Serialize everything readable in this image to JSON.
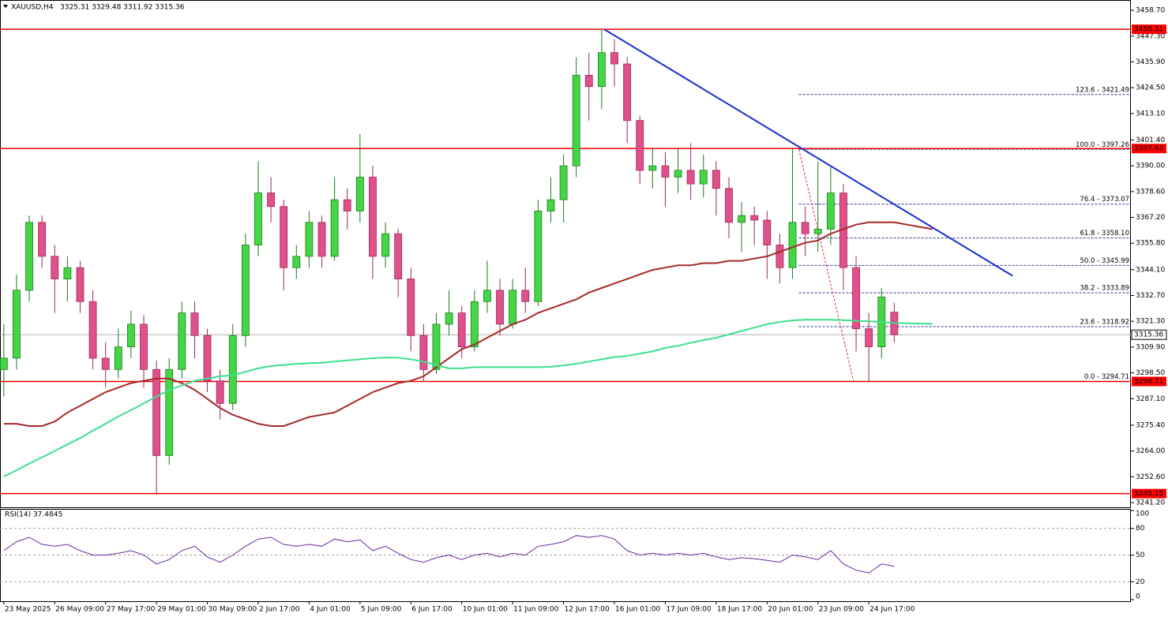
{
  "chart_data": {
    "type": "candlestick",
    "title": "XAUUSD,H4",
    "subtitle": "3325.31 3329.48 3311.92 3315.36",
    "xlim": [
      -0.3,
      88.6
    ],
    "xticks": [
      {
        "value": 0,
        "label": "23 May 2025"
      },
      {
        "value": 4,
        "label": "26 May 09:00"
      },
      {
        "value": 8,
        "label": "27 May 17:00"
      },
      {
        "value": 12,
        "label": "29 May 01:00"
      },
      {
        "value": 16,
        "label": "30 May 09:00"
      },
      {
        "value": 20,
        "label": "2 Jun 17:00"
      },
      {
        "value": 24,
        "label": "4 Jun 01:00"
      },
      {
        "value": 28,
        "label": "5 Jun 09:00"
      },
      {
        "value": 32,
        "label": "6 Jun 17:00"
      },
      {
        "value": 36,
        "label": "10 Jun 01:00"
      },
      {
        "value": 40,
        "label": "11 Jun 09:00"
      },
      {
        "value": 44,
        "label": "12 Jun 17:00"
      },
      {
        "value": 48,
        "label": "16 Jun 01:00"
      },
      {
        "value": 52,
        "label": "17 Jun 09:00"
      },
      {
        "value": 56,
        "label": "18 Jun 17:00"
      },
      {
        "value": 60,
        "label": "20 Jun 01:00"
      },
      {
        "value": 64,
        "label": "23 Jun 09:00"
      },
      {
        "value": 68,
        "label": "24 Jun 17:00"
      }
    ],
    "ylim": [
      3239.1,
      3462.9
    ],
    "yticks": [
      {
        "value": 3458.7,
        "label": "3458.70"
      },
      {
        "value": 3447.3,
        "label": "3447.30"
      },
      {
        "value": 3435.9,
        "label": "3435.90"
      },
      {
        "value": 3424.5,
        "label": "3424.50"
      },
      {
        "value": 3413.1,
        "label": "3413.10"
      },
      {
        "value": 3401.4,
        "label": "3401.40"
      },
      {
        "value": 3390,
        "label": "3390.00"
      },
      {
        "value": 3378.6,
        "label": "3378.60"
      },
      {
        "value": 3367.2,
        "label": "3367.20"
      },
      {
        "value": 3355.8,
        "label": "3355.80"
      },
      {
        "value": 3344.1,
        "label": "3344.10"
      },
      {
        "value": 3332.7,
        "label": "3332.70"
      },
      {
        "value": 3321.3,
        "label": "3321.30"
      },
      {
        "value": 3309.9,
        "label": "3309.90"
      },
      {
        "value": 3298.5,
        "label": "3298.50"
      },
      {
        "value": 3287.1,
        "label": "3287.10"
      },
      {
        "value": 3275.4,
        "label": "3275.40"
      },
      {
        "value": 3264,
        "label": "3264.00"
      },
      {
        "value": 3252.6,
        "label": "3252.60"
      },
      {
        "value": 3241.2,
        "label": "3241.20"
      }
    ],
    "up_color": "#44d644",
    "down_color": "#e0508a",
    "ohlc": {
      "open": [
        3300,
        3305,
        3335,
        3365,
        3350,
        3340,
        3345,
        3330,
        3305,
        3300,
        3310,
        3320,
        3300,
        3262,
        3300,
        3325,
        3315,
        3295,
        3285,
        3315,
        3355,
        3378,
        3372,
        3345,
        3350,
        3365,
        3350,
        3375,
        3370,
        3385,
        3350,
        3360,
        3340,
        3315,
        3300,
        3320,
        3325,
        3310,
        3330,
        3335,
        3320,
        3335,
        3330,
        3370,
        3375,
        3390,
        3430,
        3425,
        3440,
        3435,
        3410,
        3388,
        3390,
        3385,
        3388,
        3382,
        3388,
        3380,
        3365,
        3368,
        3366,
        3355,
        3345,
        3365,
        3360,
        3362,
        3378,
        3345,
        3318,
        3310,
        3325.31,
        null,
        null,
        null
      ],
      "high": [
        3320,
        3342,
        3368,
        3368,
        3355,
        3350,
        3348,
        3335,
        3312,
        3318,
        3326,
        3324,
        3304,
        3305,
        3330,
        3330,
        3318,
        3300,
        3320,
        3360,
        3392,
        3385,
        3375,
        3355,
        3370,
        3368,
        3385,
        3380,
        3404,
        3390,
        3365,
        3362,
        3345,
        3320,
        3325,
        3335,
        3328,
        3335,
        3348,
        3340,
        3340,
        3345,
        3375,
        3385,
        3395,
        3438,
        3440,
        3450.31,
        3446,
        3438,
        3412,
        3398,
        3396,
        3398,
        3400,
        3395,
        3392,
        3385,
        3374,
        3372,
        3370,
        3360,
        3398,
        3372,
        3392,
        3390,
        3382,
        3350,
        3325,
        3336,
        3329.48,
        null,
        null,
        null
      ],
      "low": [
        3288,
        3300,
        3330,
        3345,
        3325,
        3330,
        3325,
        3300,
        3292,
        3296,
        3305,
        3292,
        3245.15,
        3258,
        3296,
        3305,
        3290,
        3278,
        3282,
        3310,
        3350,
        3365,
        3335,
        3340,
        3345,
        3345,
        3348,
        3362,
        3365,
        3340,
        3345,
        3332,
        3308,
        3295,
        3298,
        3315,
        3305,
        3308,
        3325,
        3315,
        3318,
        3325,
        3328,
        3365,
        3365,
        3385,
        3410,
        3415,
        3425,
        3400,
        3382,
        3380,
        3372,
        3378,
        3375,
        3376,
        3368,
        3358,
        3352,
        3355,
        3340,
        3338,
        3340,
        3350,
        3352,
        3355,
        3335,
        3308,
        3294.71,
        3305,
        3311.92,
        null,
        null,
        null
      ],
      "close": [
        3305,
        3335,
        3365,
        3350,
        3340,
        3345,
        3330,
        3305,
        3300,
        3310,
        3320,
        3300,
        3262,
        3300,
        3325,
        3315,
        3295,
        3285,
        3315,
        3355,
        3378,
        3372,
        3345,
        3350,
        3365,
        3350,
        3375,
        3370,
        3385,
        3350,
        3360,
        3340,
        3315,
        3300,
        3320,
        3325,
        3310,
        3330,
        3335,
        3320,
        3335,
        3330,
        3370,
        3375,
        3390,
        3430,
        3425,
        3440,
        3435,
        3410,
        3388,
        3390,
        3385,
        3388,
        3382,
        3388,
        3380,
        3365,
        3368,
        3366,
        3355,
        3345,
        3365,
        3360,
        3362,
        3378,
        3345,
        3318,
        3310,
        3332,
        3315.36,
        null,
        null,
        null
      ]
    },
    "series": [
      {
        "color": "#a52a2a",
        "values": [
          3276,
          3276,
          3275,
          3275,
          3277,
          3281,
          3284,
          3287,
          3290,
          3292,
          3294,
          3295,
          3296,
          3296,
          3294,
          3291,
          3287,
          3283,
          3280,
          3278,
          3276,
          3275,
          3275,
          3277,
          3279,
          3280,
          3281,
          3284,
          3287,
          3290,
          3292,
          3294,
          3295,
          3297,
          3301,
          3305,
          3309,
          3311,
          3314,
          3317,
          3320,
          3322,
          3325,
          3327,
          3329,
          3331,
          3334,
          3336,
          3338,
          3340,
          3342,
          3344,
          3345,
          3346,
          3346,
          3347,
          3347,
          3348,
          3348,
          3349,
          3350,
          3352,
          3354,
          3356,
          3357,
          3360,
          3362,
          3364,
          3365,
          3365,
          3365,
          3364,
          3363,
          3362
        ]
      },
      {
        "color": "#3ce08c",
        "values": [
          3252.7,
          3255.5,
          3258.4,
          3261.2,
          3264,
          3266.9,
          3269.7,
          3273,
          3276,
          3279.3,
          3282,
          3285,
          3288,
          3291,
          3293,
          3295,
          3296,
          3297,
          3297.5,
          3299,
          3300.5,
          3301.5,
          3302,
          3302.5,
          3302.8,
          3303,
          3303.5,
          3304,
          3304.5,
          3305,
          3305.3,
          3305.2,
          3304.5,
          3303.5,
          3302,
          3300.5,
          3300.5,
          3301,
          3301,
          3301,
          3301,
          3301,
          3301,
          3301.2,
          3301.8,
          3302.5,
          3303.5,
          3304.5,
          3305.5,
          3306,
          3307,
          3308,
          3309.5,
          3310.5,
          3311.8,
          3313,
          3314,
          3315.5,
          3317,
          3318.5,
          3320,
          3321,
          3321.7,
          3322,
          3322,
          3322,
          3321.8,
          3321.5,
          3321.3,
          3321,
          3320.6,
          3320.4,
          3320.3,
          3320.2
        ]
      }
    ],
    "levels": [
      3450.31,
      3397.63,
      3294.71,
      3245.15
    ],
    "level_color": "#ff0000",
    "last_price": 3315.36,
    "fib_color": "#2a3a9a",
    "fib_x": [
      62.5,
      66.8
    ],
    "fib_levels": [
      {
        "value": 3294.71,
        "label": "0.0 - 3294.71"
      },
      {
        "value": 3318.92,
        "label": "23.6 - 3318.92"
      },
      {
        "value": 3333.89,
        "label": "38.2 - 3333.89"
      },
      {
        "value": 3345.99,
        "label": "50.0 - 3345.99"
      },
      {
        "value": 3358.1,
        "label": "61.8 - 3358.10"
      },
      {
        "value": 3373.07,
        "label": "76.4 - 3373.07"
      },
      {
        "value": 3397.26,
        "label": "100.0 - 3397.26"
      },
      {
        "value": 3421.49,
        "label": "123.6 - 3421.49"
      }
    ],
    "trendline": {
      "color": "#1a2fd0",
      "x": [
        47.2,
        79.3
      ],
      "y": [
        3450.3,
        3341.4
      ]
    },
    "rsi": {
      "title": "RSI(14) 37.4845",
      "color": "#6a2a9a",
      "ylim": [
        -1.8,
        101
      ],
      "yticks": [
        0,
        20,
        50,
        80,
        100
      ],
      "values": [
        55,
        65,
        70,
        62,
        60,
        62,
        55,
        50,
        50,
        52,
        55,
        50,
        40,
        45,
        55,
        60,
        48,
        42,
        50,
        60,
        68,
        70,
        62,
        60,
        62,
        60,
        68,
        65,
        67,
        55,
        60,
        52,
        45,
        42,
        47,
        50,
        45,
        50,
        52,
        48,
        52,
        50,
        60,
        62,
        65,
        72,
        70,
        72,
        68,
        55,
        50,
        52,
        50,
        52,
        50,
        52,
        48,
        45,
        47,
        46,
        44,
        42,
        50,
        48,
        45,
        55,
        40,
        33,
        30,
        40,
        37.4845,
        null,
        null,
        null
      ]
    }
  }
}
